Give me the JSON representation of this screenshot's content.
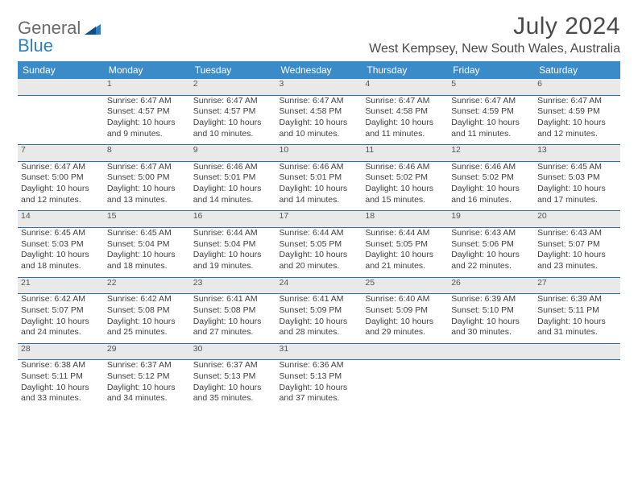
{
  "logo": {
    "general": "General",
    "blue": "Blue",
    "accent_color": "#2f7fc0"
  },
  "header": {
    "month_title": "July 2024",
    "location": "West Kempsey, New South Wales, Australia"
  },
  "colors": {
    "header_bg": "#3b8bc8",
    "row_divider": "#2f6fa8",
    "daynum_bg": "#e9e9e9",
    "text": "#3a3a3a"
  },
  "calendar": {
    "columns": [
      "Sunday",
      "Monday",
      "Tuesday",
      "Wednesday",
      "Thursday",
      "Friday",
      "Saturday"
    ],
    "weeks": [
      [
        null,
        {
          "n": "1",
          "sunrise": "6:47 AM",
          "sunset": "4:57 PM",
          "day_h": "10",
          "day_m": "9"
        },
        {
          "n": "2",
          "sunrise": "6:47 AM",
          "sunset": "4:57 PM",
          "day_h": "10",
          "day_m": "10"
        },
        {
          "n": "3",
          "sunrise": "6:47 AM",
          "sunset": "4:58 PM",
          "day_h": "10",
          "day_m": "10"
        },
        {
          "n": "4",
          "sunrise": "6:47 AM",
          "sunset": "4:58 PM",
          "day_h": "10",
          "day_m": "11"
        },
        {
          "n": "5",
          "sunrise": "6:47 AM",
          "sunset": "4:59 PM",
          "day_h": "10",
          "day_m": "11"
        },
        {
          "n": "6",
          "sunrise": "6:47 AM",
          "sunset": "4:59 PM",
          "day_h": "10",
          "day_m": "12"
        }
      ],
      [
        {
          "n": "7",
          "sunrise": "6:47 AM",
          "sunset": "5:00 PM",
          "day_h": "10",
          "day_m": "12"
        },
        {
          "n": "8",
          "sunrise": "6:47 AM",
          "sunset": "5:00 PM",
          "day_h": "10",
          "day_m": "13"
        },
        {
          "n": "9",
          "sunrise": "6:46 AM",
          "sunset": "5:01 PM",
          "day_h": "10",
          "day_m": "14"
        },
        {
          "n": "10",
          "sunrise": "6:46 AM",
          "sunset": "5:01 PM",
          "day_h": "10",
          "day_m": "14"
        },
        {
          "n": "11",
          "sunrise": "6:46 AM",
          "sunset": "5:02 PM",
          "day_h": "10",
          "day_m": "15"
        },
        {
          "n": "12",
          "sunrise": "6:46 AM",
          "sunset": "5:02 PM",
          "day_h": "10",
          "day_m": "16"
        },
        {
          "n": "13",
          "sunrise": "6:45 AM",
          "sunset": "5:03 PM",
          "day_h": "10",
          "day_m": "17"
        }
      ],
      [
        {
          "n": "14",
          "sunrise": "6:45 AM",
          "sunset": "5:03 PM",
          "day_h": "10",
          "day_m": "18"
        },
        {
          "n": "15",
          "sunrise": "6:45 AM",
          "sunset": "5:04 PM",
          "day_h": "10",
          "day_m": "18"
        },
        {
          "n": "16",
          "sunrise": "6:44 AM",
          "sunset": "5:04 PM",
          "day_h": "10",
          "day_m": "19"
        },
        {
          "n": "17",
          "sunrise": "6:44 AM",
          "sunset": "5:05 PM",
          "day_h": "10",
          "day_m": "20"
        },
        {
          "n": "18",
          "sunrise": "6:44 AM",
          "sunset": "5:05 PM",
          "day_h": "10",
          "day_m": "21"
        },
        {
          "n": "19",
          "sunrise": "6:43 AM",
          "sunset": "5:06 PM",
          "day_h": "10",
          "day_m": "22"
        },
        {
          "n": "20",
          "sunrise": "6:43 AM",
          "sunset": "5:07 PM",
          "day_h": "10",
          "day_m": "23"
        }
      ],
      [
        {
          "n": "21",
          "sunrise": "6:42 AM",
          "sunset": "5:07 PM",
          "day_h": "10",
          "day_m": "24"
        },
        {
          "n": "22",
          "sunrise": "6:42 AM",
          "sunset": "5:08 PM",
          "day_h": "10",
          "day_m": "25"
        },
        {
          "n": "23",
          "sunrise": "6:41 AM",
          "sunset": "5:08 PM",
          "day_h": "10",
          "day_m": "27"
        },
        {
          "n": "24",
          "sunrise": "6:41 AM",
          "sunset": "5:09 PM",
          "day_h": "10",
          "day_m": "28"
        },
        {
          "n": "25",
          "sunrise": "6:40 AM",
          "sunset": "5:09 PM",
          "day_h": "10",
          "day_m": "29"
        },
        {
          "n": "26",
          "sunrise": "6:39 AM",
          "sunset": "5:10 PM",
          "day_h": "10",
          "day_m": "30"
        },
        {
          "n": "27",
          "sunrise": "6:39 AM",
          "sunset": "5:11 PM",
          "day_h": "10",
          "day_m": "31"
        }
      ],
      [
        {
          "n": "28",
          "sunrise": "6:38 AM",
          "sunset": "5:11 PM",
          "day_h": "10",
          "day_m": "33"
        },
        {
          "n": "29",
          "sunrise": "6:37 AM",
          "sunset": "5:12 PM",
          "day_h": "10",
          "day_m": "34"
        },
        {
          "n": "30",
          "sunrise": "6:37 AM",
          "sunset": "5:13 PM",
          "day_h": "10",
          "day_m": "35"
        },
        {
          "n": "31",
          "sunrise": "6:36 AM",
          "sunset": "5:13 PM",
          "day_h": "10",
          "day_m": "37"
        },
        null,
        null,
        null
      ]
    ],
    "labels": {
      "sunrise": "Sunrise:",
      "sunset": "Sunset:",
      "daylight_prefix": "Daylight:",
      "hours_word": "hours",
      "and_word": "and",
      "minutes_word": "minutes."
    }
  }
}
